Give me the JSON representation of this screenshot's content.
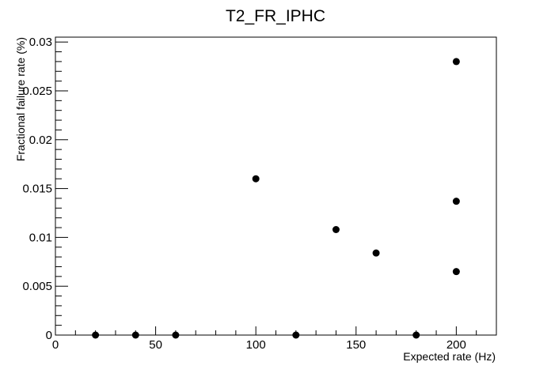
{
  "chart_data": {
    "type": "scatter",
    "title": "T2_FR_IPHC",
    "xlabel": "Expected rate (Hz)",
    "ylabel": "Fractional failure rate (%)",
    "xlim": [
      0,
      220
    ],
    "ylim": [
      0,
      0.0305
    ],
    "x_ticks": [
      0,
      50,
      100,
      150,
      200
    ],
    "x_tick_labels": [
      "0",
      "50",
      "100",
      "150",
      "200"
    ],
    "y_ticks": [
      0,
      0.005,
      0.01,
      0.015,
      0.02,
      0.025,
      0.03
    ],
    "y_tick_labels": [
      "0",
      "0.005",
      "0.01",
      "0.015",
      "0.02",
      "0.025",
      "0.03"
    ],
    "grid": false,
    "marker_color": "#000000",
    "points": [
      {
        "x": 20,
        "y": 0
      },
      {
        "x": 40,
        "y": 0
      },
      {
        "x": 60,
        "y": 0
      },
      {
        "x": 100,
        "y": 0.016
      },
      {
        "x": 120,
        "y": 0
      },
      {
        "x": 140,
        "y": 0.0108
      },
      {
        "x": 160,
        "y": 0.0084
      },
      {
        "x": 180,
        "y": 0
      },
      {
        "x": 200,
        "y": 0.028
      },
      {
        "x": 200,
        "y": 0.0137
      },
      {
        "x": 200,
        "y": 0.0065
      }
    ]
  }
}
